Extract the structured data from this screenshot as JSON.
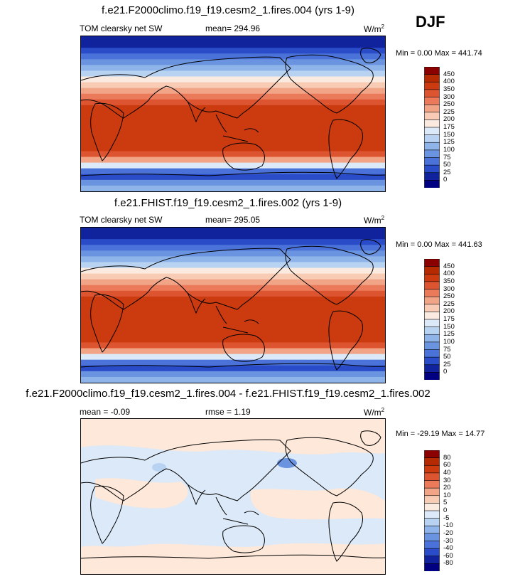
{
  "season": "DJF",
  "panels": [
    {
      "title": "f.e21.F2000climo.f19_f19.cesm2_1.fires.004 (yrs 1-9)",
      "variable": "TOM clearsky net SW",
      "stat": "mean= 294.96",
      "units": "W/m",
      "units_exp": "2",
      "minmax": "Min =   0.00 Max = 441.74"
    },
    {
      "title": "f.e21.FHIST.f19_f19.cesm2_1.fires.002 (yrs 1-9)",
      "variable": "TOM clearsky net SW",
      "stat": "mean= 295.05",
      "units": "W/m",
      "units_exp": "2",
      "minmax": "Min =   0.00 Max = 441.63"
    },
    {
      "title": "f.e21.F2000climo.f19_f19.cesm2_1.fires.004 - f.e21.FHIST.f19_f19.cesm2_1.fires.002",
      "variable": "mean =  -0.09",
      "stat": "rmse =   1.19",
      "units": "W/m",
      "units_exp": "2",
      "minmax": "Min = -29.19 Max =  14.77"
    }
  ],
  "chart_data": [
    {
      "type": "heatmap",
      "title": "f.e21.F2000climo.f19_f19.cesm2_1.fires.004 (yrs 1-9)",
      "variable": "TOM clearsky net SW",
      "units": "W/m2",
      "mean": 294.96,
      "min": 0.0,
      "max": 441.74,
      "colorbar_levels": [
        450,
        400,
        350,
        300,
        250,
        225,
        200,
        175,
        150,
        125,
        100,
        75,
        50,
        25,
        0
      ],
      "colorbar_colors": [
        "#8b0000",
        "#b52a00",
        "#cc3a10",
        "#dd5530",
        "#ea7a5a",
        "#f2a487",
        "#f8cbb5",
        "#fbeae0",
        "#dce9f8",
        "#b8d2f2",
        "#8fb4ea",
        "#6a94e0",
        "#4a72d8",
        "#2a4cc8",
        "#10239c",
        "#000080"
      ]
    },
    {
      "type": "heatmap",
      "title": "f.e21.FHIST.f19_f19.cesm2_1.fires.002 (yrs 1-9)",
      "variable": "TOM clearsky net SW",
      "units": "W/m2",
      "mean": 295.05,
      "min": 0.0,
      "max": 441.63,
      "colorbar_levels": [
        450,
        400,
        350,
        300,
        250,
        225,
        200,
        175,
        150,
        125,
        100,
        75,
        50,
        25,
        0
      ],
      "colorbar_colors": [
        "#8b0000",
        "#b52a00",
        "#cc3a10",
        "#dd5530",
        "#ea7a5a",
        "#f2a487",
        "#f8cbb5",
        "#fbeae0",
        "#dce9f8",
        "#b8d2f2",
        "#8fb4ea",
        "#6a94e0",
        "#4a72d8",
        "#2a4cc8",
        "#10239c",
        "#000080"
      ]
    },
    {
      "type": "heatmap",
      "title": "f.e21.F2000climo.f19_f19.cesm2_1.fires.004 - f.e21.FHIST.f19_f19.cesm2_1.fires.002",
      "units": "W/m2",
      "mean": -0.09,
      "rmse": 1.19,
      "min": -29.19,
      "max": 14.77,
      "colorbar_levels": [
        80,
        60,
        40,
        30,
        20,
        10,
        5,
        0,
        -5,
        -10,
        -20,
        -30,
        -40,
        -60,
        -80
      ],
      "colorbar_colors": [
        "#8b0000",
        "#b52a00",
        "#cc3a10",
        "#dd5530",
        "#ea7a5a",
        "#f2a487",
        "#f8cbb5",
        "#fbeae0",
        "#dce9f8",
        "#b8d2f2",
        "#8fb4ea",
        "#6a94e0",
        "#4a72d8",
        "#2a4cc8",
        "#10239c",
        "#000080"
      ]
    }
  ]
}
